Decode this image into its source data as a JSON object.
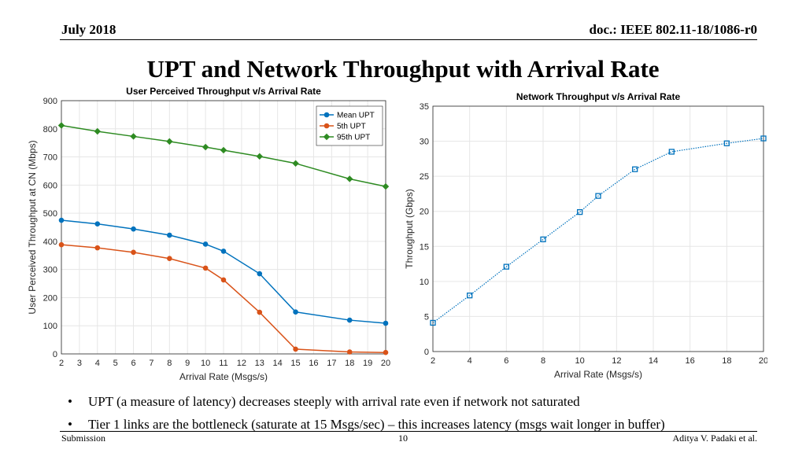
{
  "header": {
    "date": "July  2018",
    "doc_id": "doc.: IEEE 802.11-18/1086-r0"
  },
  "slide_title": "UPT and Network Throughput with Arrival Rate",
  "colors": {
    "mean": "#0072BD",
    "p5": "#D95319",
    "p95": "#2E8B22",
    "net": "#0072BD"
  },
  "chart_data": [
    {
      "type": "line",
      "title": "User Perceived Throughput v/s Arrival Rate",
      "xlabel": "Arrival Rate (Msgs/s)",
      "ylabel": "User Perceived Throughput at CN (Mbps)",
      "xticks": [
        2,
        3,
        4,
        5,
        6,
        7,
        8,
        9,
        10,
        11,
        12,
        13,
        14,
        15,
        16,
        17,
        18,
        19,
        20
      ],
      "yticks": [
        0,
        100,
        200,
        300,
        400,
        500,
        600,
        700,
        800,
        900
      ],
      "xlim": [
        2,
        20
      ],
      "ylim": [
        0,
        900
      ],
      "legend": "top-right",
      "x": [
        2,
        4,
        6,
        8,
        10,
        11,
        13,
        15,
        18,
        20
      ],
      "series": [
        {
          "name": "Mean UPT",
          "color_key": "mean",
          "marker": "circle",
          "values": [
            475,
            462,
            444,
            422,
            390,
            365,
            285,
            149,
            120,
            109
          ]
        },
        {
          "name": "5th UPT",
          "color_key": "p5",
          "marker": "circle",
          "values": [
            388,
            377,
            361,
            339,
            305,
            263,
            148,
            17,
            7,
            5
          ]
        },
        {
          "name": "95th UPT",
          "color_key": "p95",
          "marker": "diamond",
          "values": [
            812,
            791,
            773,
            755,
            735,
            724,
            702,
            677,
            622,
            595
          ]
        }
      ]
    },
    {
      "type": "line",
      "title": "Network Throughput v/s Arrival Rate",
      "xlabel": "Arrival Rate (Msgs/s)",
      "ylabel": "Throughput (Gbps)",
      "xticks": [
        2,
        4,
        6,
        8,
        10,
        12,
        14,
        16,
        18,
        20
      ],
      "yticks": [
        0,
        5,
        10,
        15,
        20,
        25,
        30,
        35
      ],
      "xlim": [
        2,
        20
      ],
      "ylim": [
        0,
        35
      ],
      "x": [
        2,
        4,
        6,
        8,
        10,
        11,
        13,
        15,
        18,
        20
      ],
      "series": [
        {
          "name": "Network Throughput",
          "color_key": "net",
          "marker": "square",
          "dotted": true,
          "values": [
            4.1,
            8.0,
            12.1,
            16.0,
            19.9,
            22.2,
            26.0,
            28.5,
            29.7,
            30.4
          ]
        }
      ]
    }
  ],
  "bullets": [
    "UPT (a measure of latency) decreases steeply with arrival rate even if network not saturated",
    "Tier 1 links are the bottleneck (saturate at 15 Msgs/sec) – this increases latency (msgs wait longer in buffer)"
  ],
  "footer": {
    "left": "Submission",
    "page": "10",
    "author": "Aditya V. Padaki et al."
  }
}
